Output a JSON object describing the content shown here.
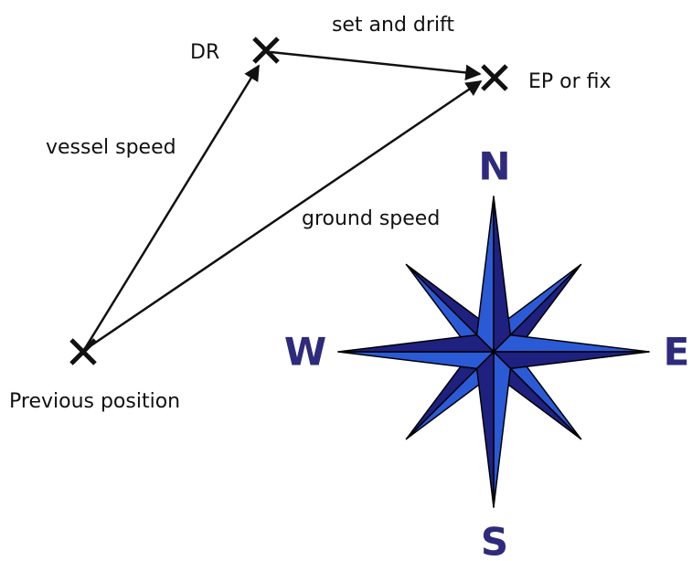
{
  "labels": {
    "dr": "DR",
    "set_drift": "set and drift",
    "ep": "EP or fix",
    "vessel_speed": "vessel speed",
    "ground_speed": "ground speed",
    "previous": "Previous position"
  },
  "compass": {
    "n": "N",
    "e": "E",
    "s": "S",
    "w": "W"
  }
}
